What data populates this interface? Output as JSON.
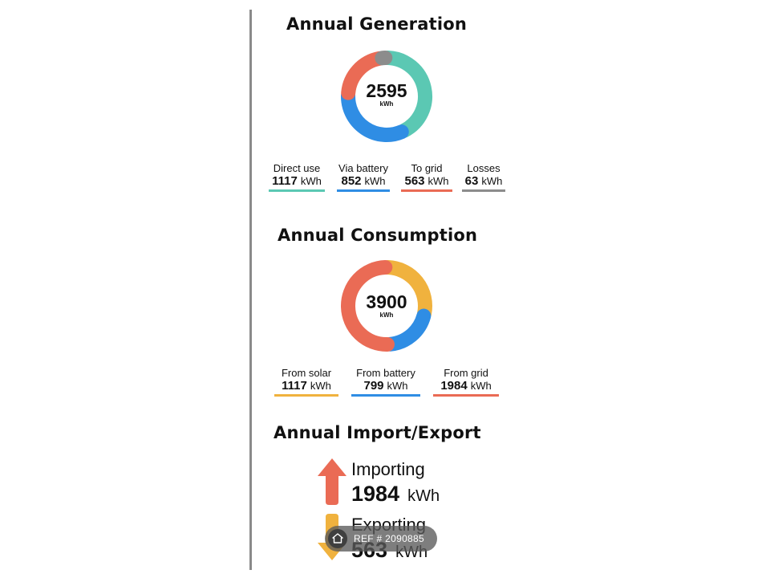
{
  "generation": {
    "title": "Annual Generation",
    "total": "2595",
    "unit": "kWh",
    "items": [
      {
        "label": "Direct use",
        "value": "1117",
        "unit": "kWh",
        "amount": 1117,
        "color": "#5bc8b3"
      },
      {
        "label": "Via battery",
        "value": "852",
        "unit": "kWh",
        "amount": 852,
        "color": "#2f8de4"
      },
      {
        "label": "To grid",
        "value": "563",
        "unit": "kWh",
        "amount": 563,
        "color": "#ea6b55"
      },
      {
        "label": "Losses",
        "value": "63",
        "unit": "kWh",
        "amount": 63,
        "color": "#8c8c8c"
      }
    ]
  },
  "consumption": {
    "title": "Annual Consumption",
    "total": "3900",
    "unit": "kWh",
    "items": [
      {
        "label": "From solar",
        "value": "1117",
        "unit": "kWh",
        "amount": 1117,
        "color": "#f0b23e"
      },
      {
        "label": "From battery",
        "value": "799",
        "unit": "kWh",
        "amount": 799,
        "color": "#2f8de4"
      },
      {
        "label": "From grid",
        "value": "1984",
        "unit": "kWh",
        "amount": 1984,
        "color": "#ea6b55"
      }
    ]
  },
  "import_export": {
    "title": "Annual Import/Export",
    "importing": {
      "label": "Importing",
      "value": "1984",
      "unit": "kWh",
      "color": "#ea6b55",
      "icon": "arrow-up-icon"
    },
    "exporting": {
      "label": "Exporting",
      "value": "563",
      "unit": "kWh",
      "color": "#f0b23e",
      "icon": "arrow-down-icon"
    }
  },
  "badge": {
    "text": "REF # 2090885",
    "icon": "home-icon"
  }
}
